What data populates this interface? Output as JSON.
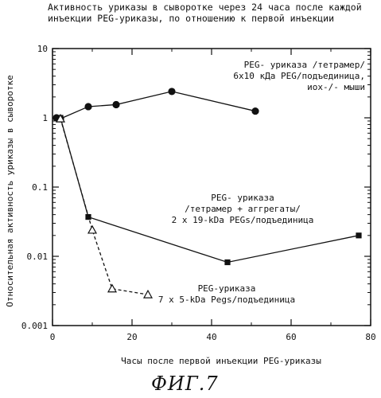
{
  "chart_data": {
    "type": "line",
    "title": "Активность уриказы в сыворотке через 24 часа после каждой инъекции PEG-уриказы, по отношению к первой инъекции",
    "xlabel": "Часы после первой инъекции PEG-уриказы",
    "ylabel": "Относительная активность уриказы в сыворотке",
    "xlim": [
      0,
      80
    ],
    "ylim": [
      0.001,
      10
    ],
    "yscale": "log",
    "x_ticks": [
      "0",
      "20",
      "40",
      "60",
      "80"
    ],
    "y_ticks": [
      "0.001",
      "0.01",
      "0.1",
      "1",
      "10"
    ],
    "grid": false,
    "series": [
      {
        "name": "PEG- уриказа /тетрамер/ 6x10 кДа PEG/подъединица, иox-/- мыши",
        "label_lines": [
          "PEG- уриказа /тетрамер/",
          "6x10 кДа PEG/подъединица,",
          "иox-/- мыши"
        ],
        "marker": "circle",
        "line": "solid",
        "x": [
          1,
          2,
          9,
          16,
          30,
          51
        ],
        "y": [
          1.0,
          0.97,
          1.45,
          1.55,
          2.4,
          1.25
        ]
      },
      {
        "name": "PEG- уриказа /тетрамер + аггрегаты/ 2 x 19-kDa PEGs/подъединица",
        "label_lines": [
          "PEG- уриказа",
          "/тетрамер + аггрегаты/",
          "2 x 19-kDa PEGs/подъединица"
        ],
        "marker": "square",
        "line": "solid",
        "x": [
          2,
          9,
          44,
          77
        ],
        "y": [
          1.0,
          0.037,
          0.0082,
          0.02
        ]
      },
      {
        "name": "PEG-уриказа 7 x 5-kDa Pegs/подъединица",
        "label_lines": [
          "PEG-уриказа",
          "7 x 5-kDa Pegs/подъединица"
        ],
        "marker": "triangle",
        "line": "dashed",
        "x": [
          2,
          10,
          15,
          24
        ],
        "y": [
          0.97,
          0.024,
          0.0034,
          0.0028
        ]
      }
    ]
  },
  "figure_caption": "ФИГ.7"
}
